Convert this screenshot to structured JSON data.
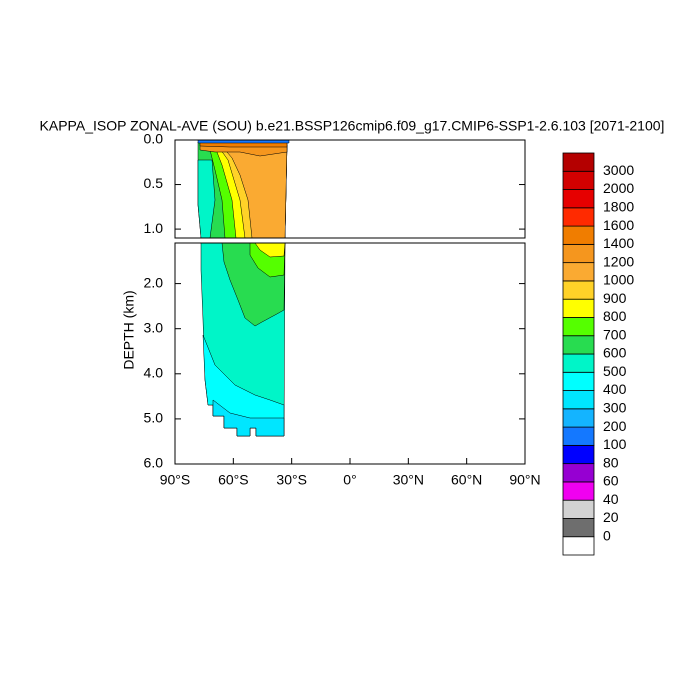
{
  "chart_data": {
    "type": "contour",
    "title": "KAPPA_ISOP ZONAL-AVE (SOU) b.e21.BSSP126cmip6.f09_g17.CMIP6-SSP1-2.6.103 [2071-2100]",
    "ylabel": "DEPTH (km)",
    "y_inverted": true,
    "xlim": [
      -90,
      90
    ],
    "xticks": [
      {
        "value": -90,
        "label": "90°S"
      },
      {
        "value": -60,
        "label": "60°S"
      },
      {
        "value": -30,
        "label": "30°S"
      },
      {
        "value": 0,
        "label": "0°"
      },
      {
        "value": 30,
        "label": "30°N"
      },
      {
        "value": 60,
        "label": "60°N"
      },
      {
        "value": 90,
        "label": "90°N"
      }
    ],
    "panels": [
      {
        "ylim": [
          0,
          1.1
        ],
        "yticks": [
          {
            "value": 0,
            "label": "0.0"
          },
          {
            "value": 0.5,
            "label": "0.5"
          },
          {
            "value": 1,
            "label": "1.0"
          }
        ]
      },
      {
        "ylim": [
          1.1,
          6
        ],
        "yticks": [
          {
            "value": 2,
            "label": "2.0"
          },
          {
            "value": 3,
            "label": "3.0"
          },
          {
            "value": 4,
            "label": "4.0"
          },
          {
            "value": 5,
            "label": "5.0"
          },
          {
            "value": 6,
            "label": "6.0"
          }
        ]
      }
    ],
    "colorbar": {
      "levels": [
        0,
        20,
        40,
        60,
        80,
        100,
        200,
        300,
        400,
        500,
        600,
        700,
        800,
        900,
        1000,
        1200,
        1400,
        1600,
        1800,
        2000,
        3000
      ],
      "colors": [
        "#ffffff",
        "#6e6e6e",
        "#d2d2d2",
        "#f000f0",
        "#9600d2",
        "#0000ff",
        "#1478ff",
        "#14b4ff",
        "#00e6ff",
        "#00ffff",
        "#00f5c8",
        "#28dc50",
        "#55ff00",
        "#ffff00",
        "#ffd228",
        "#faaa32",
        "#f5961e",
        "#f07d00",
        "#ff2a00",
        "#e60000",
        "#d20000",
        "#b40000"
      ]
    }
  }
}
